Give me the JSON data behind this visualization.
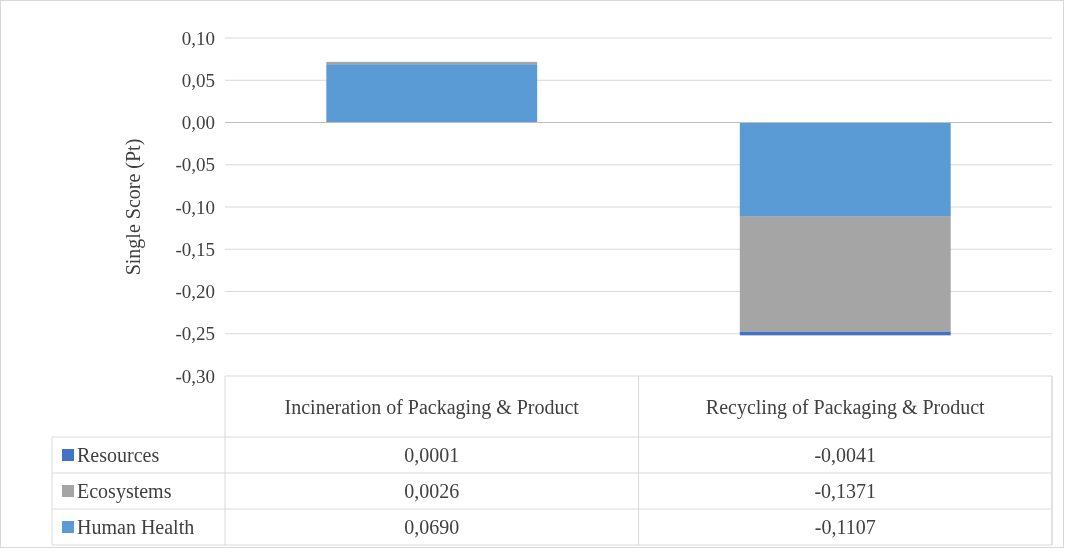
{
  "chart_data": {
    "type": "bar",
    "stacked": true,
    "ylabel": "Single Score (Pt)",
    "categories": [
      "Incineration of Packaging & Product",
      "Recycling of Packaging & Product"
    ],
    "series": [
      {
        "name": "Human Health",
        "color": "#5b9bd5",
        "values": [
          0.069,
          -0.1107
        ],
        "value_labels": [
          "0,0690",
          "-0,1107"
        ]
      },
      {
        "name": "Ecosystems",
        "color": "#a5a5a5",
        "values": [
          0.0026,
          -0.1371
        ],
        "value_labels": [
          "0,0026",
          "-0,1371"
        ]
      },
      {
        "name": "Resources",
        "color": "#4472c4",
        "values": [
          0.0001,
          -0.0041
        ],
        "value_labels": [
          "0,0001",
          "-0,0041"
        ]
      }
    ],
    "ylim": [
      -0.3,
      0.1
    ],
    "yticks": [
      {
        "value": -0.3,
        "label": "-0,30"
      },
      {
        "value": -0.25,
        "label": "-0,25"
      },
      {
        "value": -0.2,
        "label": "-0,20"
      },
      {
        "value": -0.15,
        "label": "-0,15"
      },
      {
        "value": -0.1,
        "label": "-0,10"
      },
      {
        "value": -0.05,
        "label": "-0,05"
      },
      {
        "value": 0,
        "label": "0,00"
      },
      {
        "value": 0.05,
        "label": "0,05"
      },
      {
        "value": 0.1,
        "label": "0,10"
      }
    ],
    "grid": true,
    "legend": "bottom"
  }
}
